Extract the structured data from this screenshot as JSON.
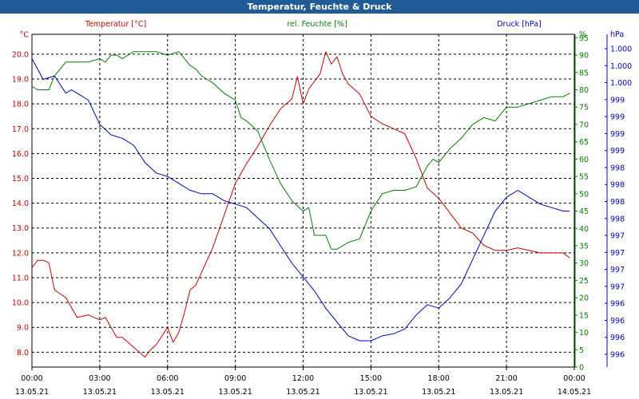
{
  "window": {
    "title": "Temperatur, Feuchte & Druck"
  },
  "chart_data": {
    "type": "line",
    "title": "Temperatur, Feuchte & Druck",
    "x_ticks": [
      {
        "time": "00:00",
        "date": "13.05.21"
      },
      {
        "time": "03:00",
        "date": "13.05.21"
      },
      {
        "time": "06:00",
        "date": "13.05.21"
      },
      {
        "time": "09:00",
        "date": "13.05.21"
      },
      {
        "time": "12:00",
        "date": "13.05.21"
      },
      {
        "time": "15:00",
        "date": "13.05.21"
      },
      {
        "time": "18:00",
        "date": "13.05.21"
      },
      {
        "time": "21:00",
        "date": "13.05.21"
      },
      {
        "time": "00:00",
        "date": "14.05.21"
      }
    ],
    "xlim_hours": [
      0,
      24
    ],
    "grid": true,
    "axes": {
      "temperature": {
        "label": "Temperatur [°C]",
        "unit": "°C",
        "color": "#cc0000",
        "range": [
          7.4,
          20.8
        ],
        "side": "left",
        "ticks": [
          "20.0",
          "19.0",
          "18.0",
          "17.0",
          "16.0",
          "15.0",
          "14.0",
          "13.0",
          "12.0",
          "11.0",
          "10.0",
          "9.0",
          "8.0"
        ]
      },
      "humidity": {
        "label": "rel. Feuchte [%]",
        "unit": "%",
        "color": "#008000",
        "range": [
          0,
          96
        ],
        "side": "right",
        "ticks": [
          "95",
          "90",
          "85",
          "80",
          "75",
          "70",
          "65",
          "60",
          "55",
          "50",
          "45",
          "40",
          "35",
          "30",
          "25",
          "20",
          "15",
          "10",
          "5",
          "0"
        ]
      },
      "pressure": {
        "label": "Druck [hPa]",
        "unit": "hPa",
        "color": "#0000cc",
        "side": "right",
        "range": [
          995.6,
          1000.4
        ],
        "ticks": [
          "1.000",
          "1.000",
          "1.000",
          "999",
          "999",
          "999",
          "999",
          "998",
          "998",
          "998",
          "998",
          "997",
          "997",
          "997",
          "997",
          "996",
          "996",
          "996",
          "996"
        ]
      }
    },
    "series": [
      {
        "name": "Temperatur [°C]",
        "axis": "temperature",
        "color": "#cc0000",
        "x": [
          0,
          0.25,
          0.5,
          0.75,
          1,
          1.5,
          2,
          2.5,
          3,
          3.25,
          3.5,
          3.75,
          4,
          4.5,
          5,
          5.25,
          5.5,
          6,
          6.25,
          6.5,
          6.75,
          7,
          7.25,
          7.5,
          8,
          8.5,
          9,
          9.5,
          10,
          10.5,
          11,
          11.5,
          11.75,
          12,
          12.25,
          12.5,
          12.75,
          13,
          13.25,
          13.5,
          13.75,
          14,
          14.5,
          15,
          15.5,
          16,
          16.5,
          17,
          17.5,
          18,
          18.5,
          19,
          19.5,
          20,
          20.5,
          21,
          21.5,
          22,
          22.5,
          23,
          23.5,
          23.8
        ],
        "y": [
          11.4,
          11.7,
          11.7,
          11.6,
          10.5,
          10.2,
          9.4,
          9.5,
          9.3,
          9.4,
          9.0,
          8.6,
          8.6,
          8.2,
          7.8,
          8.1,
          8.3,
          9.0,
          8.4,
          8.8,
          9.6,
          10.5,
          10.7,
          11.2,
          12.2,
          13.5,
          14.8,
          15.6,
          16.3,
          17.1,
          17.8,
          18.2,
          19.1,
          18.0,
          18.6,
          18.9,
          19.2,
          20.1,
          19.6,
          19.9,
          19.2,
          18.8,
          18.4,
          17.5,
          17.2,
          17.0,
          16.8,
          15.8,
          14.6,
          14.2,
          13.6,
          13.0,
          12.8,
          12.3,
          12.1,
          12.1,
          12.2,
          12.1,
          12.0,
          12.0,
          12.0,
          11.8
        ]
      },
      {
        "name": "rel. Feuchte [%]",
        "axis": "humidity",
        "color": "#008000",
        "x": [
          0,
          0.25,
          0.5,
          0.75,
          1,
          1.5,
          2,
          2.5,
          3,
          3.25,
          3.5,
          3.75,
          4,
          4.5,
          5,
          5.5,
          6,
          6.5,
          7,
          7.25,
          7.5,
          8,
          8.5,
          8.75,
          9,
          9.25,
          9.5,
          10,
          10.5,
          11,
          11.5,
          12,
          12.25,
          12.5,
          13,
          13.25,
          13.5,
          13.75,
          14,
          14.5,
          15,
          15.5,
          16,
          16.5,
          17,
          17.25,
          17.5,
          17.75,
          18,
          18.5,
          19,
          19.5,
          20,
          20.5,
          21,
          21.5,
          22,
          22.5,
          23,
          23.5,
          23.8
        ],
        "y": [
          81,
          80,
          80,
          80,
          84,
          88,
          88,
          88,
          89,
          88,
          90,
          90,
          89,
          91,
          91,
          91,
          90,
          91,
          87,
          86,
          84,
          82,
          79,
          78,
          77,
          72,
          71,
          68,
          60,
          53,
          48,
          45,
          46,
          38,
          38,
          34,
          34,
          35,
          36,
          37,
          45,
          50,
          51,
          51,
          52,
          55,
          58,
          60,
          59,
          63,
          66,
          70,
          72,
          71,
          75,
          75,
          76,
          77,
          78,
          78,
          79
        ]
      },
      {
        "name": "Druck [hPa]",
        "axis": "pressure",
        "color": "#0000cc",
        "x": [
          0,
          0.5,
          1,
          1.5,
          1.75,
          2,
          2.5,
          3,
          3.5,
          4,
          4.5,
          5,
          5.5,
          6,
          6.5,
          7,
          7.5,
          8,
          8.5,
          9,
          9.5,
          10,
          10.5,
          11,
          11.5,
          12,
          12.5,
          13,
          13.5,
          14,
          14.5,
          15,
          15.5,
          16,
          16.5,
          17,
          17.5,
          18,
          18.5,
          19,
          19.5,
          20,
          20.5,
          21,
          21.5,
          22,
          22.5,
          23,
          23.5,
          23.8
        ],
        "y": [
          1000.05,
          999.75,
          999.8,
          999.55,
          999.6,
          999.55,
          999.45,
          999.1,
          998.95,
          998.9,
          998.8,
          998.55,
          998.4,
          998.35,
          998.25,
          998.15,
          998.1,
          998.1,
          998.0,
          997.95,
          997.9,
          997.75,
          997.6,
          997.35,
          997.1,
          996.9,
          996.7,
          996.45,
          996.25,
          996.05,
          995.98,
          995.98,
          996.05,
          996.08,
          996.15,
          996.35,
          996.5,
          996.45,
          996.6,
          996.8,
          997.15,
          997.5,
          997.85,
          998.05,
          998.15,
          998.05,
          997.95,
          997.9,
          997.85,
          997.85
        ]
      }
    ]
  }
}
